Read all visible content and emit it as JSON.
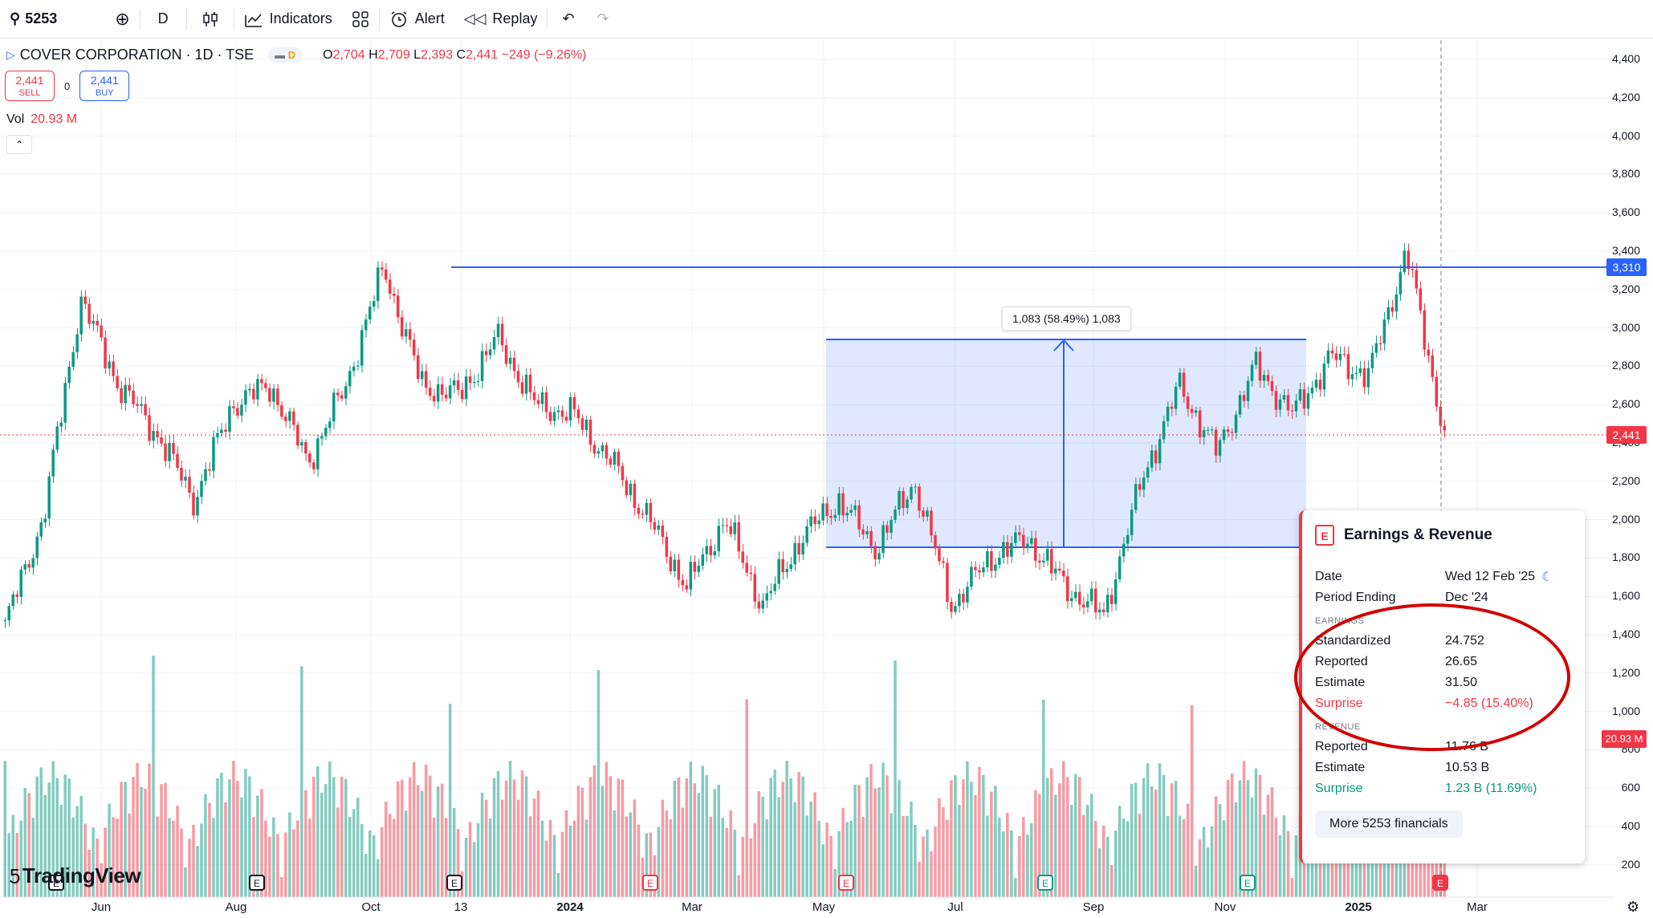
{
  "toolbar": {
    "symbol": "5253",
    "interval": "D",
    "indicators_label": "Indicators",
    "alert_label": "Alert",
    "replay_label": "Replay"
  },
  "legend": {
    "title": "COVER CORPORATION · 1D · TSE",
    "delay_badge": "D",
    "ohlc_o": "2,704",
    "ohlc_h": "2,709",
    "ohlc_l": "2,393",
    "ohlc_c": "2,441",
    "change": "−249 (−9.26%)"
  },
  "trade": {
    "sell_price": "2,441",
    "sell_label": "SELL",
    "spread": "0",
    "buy_price": "2,441",
    "buy_label": "BUY"
  },
  "volume": {
    "label": "Vol",
    "value": "20.93 M"
  },
  "price_axis": {
    "ticks": [
      "4,400",
      "4,200",
      "4,000",
      "3,800",
      "3,600",
      "3,400",
      "3,200",
      "3,000",
      "2,800",
      "2,600",
      "2,400",
      "2,200",
      "2,000",
      "1,800",
      "1,600",
      "1,400",
      "1,200",
      "1,000",
      "800",
      "600",
      "400",
      "200"
    ],
    "tag_resistance": "3,310",
    "tag_last": "2,441",
    "tag_volume": "20.93 M"
  },
  "time_axis": {
    "labels": [
      "Jun",
      "Aug",
      "Oct",
      "13",
      "2024",
      "Mar",
      "May",
      "Jul",
      "Sep",
      "Nov",
      "2025",
      "Mar"
    ]
  },
  "measure": {
    "label": "1,083 (58.49%) 1,083"
  },
  "brand": "TradingView",
  "earnings": {
    "title": "Earnings & Revenue",
    "date_label": "Date",
    "date_value": "Wed 12 Feb '25",
    "period_label": "Period Ending",
    "period_value": "Dec '24",
    "earnings_section": "EARNINGS",
    "standardized_label": "Standardized",
    "standardized_value": "24.752",
    "reported_label": "Reported",
    "reported_value": "26.65",
    "estimate_label": "Estimate",
    "estimate_value": "31.50",
    "surprise_label": "Surprise",
    "surprise_value": "−4.85 (15.40%)",
    "revenue_section": "REVENUE",
    "rev_reported_label": "Reported",
    "rev_reported_value": "11.76 B",
    "rev_estimate_label": "Estimate",
    "rev_estimate_value": "10.53 B",
    "rev_surprise_label": "Surprise",
    "rev_surprise_value": "1.23 B (11.69%)",
    "more_button": "More 5253 financials"
  },
  "chart_data": {
    "type": "candlestick",
    "symbol": "5253",
    "interval": "1D",
    "ylim": [
      200,
      4400
    ],
    "horizontal_line": 3310,
    "last_price": 2441,
    "measure_box": {
      "low": 1850,
      "high": 2933,
      "change": 1083,
      "change_pct": 58.49
    },
    "close_path": [
      [
        "2023-05",
        1450
      ],
      [
        "2023-06",
        2000
      ],
      [
        "2023-06",
        3150
      ],
      [
        "2023-07",
        2700
      ],
      [
        "2023-08",
        2450
      ],
      [
        "2023-08",
        2100
      ],
      [
        "2023-09",
        2600
      ],
      [
        "2023-10",
        2700
      ],
      [
        "2023-10",
        2300
      ],
      [
        "2023-11",
        2700
      ],
      [
        "2023-11",
        3320
      ],
      [
        "2023-12",
        2700
      ],
      [
        "2024-01",
        2650
      ],
      [
        "2024-02",
        2950
      ],
      [
        "2024-02",
        2600
      ],
      [
        "2024-03",
        2550
      ],
      [
        "2024-04",
        2300
      ],
      [
        "2024-04",
        2000
      ],
      [
        "2024-05",
        1650
      ],
      [
        "2024-05",
        2000
      ],
      [
        "2024-06",
        1550
      ],
      [
        "2024-06",
        1900
      ],
      [
        "2024-07",
        2100
      ],
      [
        "2024-07",
        1850
      ],
      [
        "2024-08",
        2200
      ],
      [
        "2024-08",
        1550
      ],
      [
        "2024-09",
        1800
      ],
      [
        "2024-09",
        1900
      ],
      [
        "2024-10",
        1650
      ],
      [
        "2024-10",
        1500
      ],
      [
        "2024-11",
        2200
      ],
      [
        "2024-11",
        2700
      ],
      [
        "2024-12",
        2350
      ],
      [
        "2024-12",
        2800
      ],
      [
        "2025-01",
        2550
      ],
      [
        "2025-01",
        2850
      ],
      [
        "2025-02",
        2750
      ],
      [
        "2025-02",
        3400
      ],
      [
        "2025-02",
        2441
      ]
    ]
  }
}
